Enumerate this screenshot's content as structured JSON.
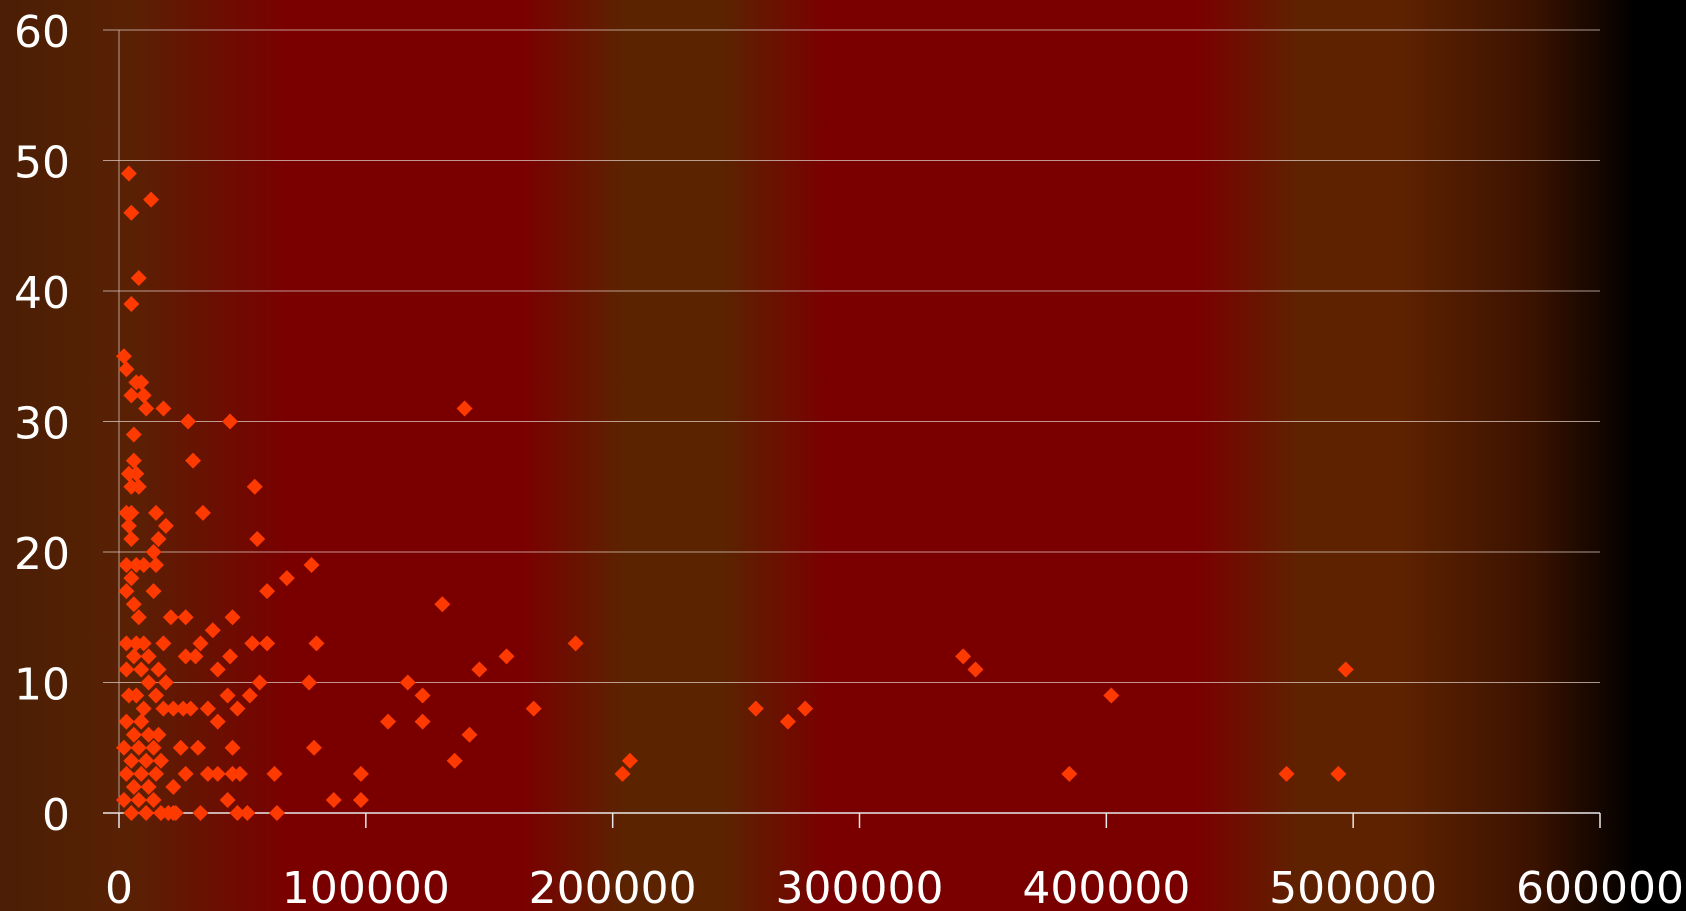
{
  "chart_data": {
    "type": "scatter",
    "title": "",
    "xlabel": "",
    "ylabel": "",
    "xlim": [
      0,
      600000
    ],
    "ylim": [
      0,
      60
    ],
    "grid": "horizontal",
    "x_ticks": [
      "0",
      "100000",
      "200000",
      "300000",
      "400000",
      "500000",
      "600000"
    ],
    "y_ticks": [
      "0",
      "10",
      "20",
      "30",
      "40",
      "50",
      "60"
    ],
    "marker": "diamond",
    "marker_color": "#ff3a00",
    "points": [
      [
        4000,
        49
      ],
      [
        5000,
        46
      ],
      [
        13000,
        47
      ],
      [
        8000,
        41
      ],
      [
        5000,
        39
      ],
      [
        2000,
        35
      ],
      [
        3000,
        34
      ],
      [
        5000,
        32
      ],
      [
        7000,
        33
      ],
      [
        9000,
        33
      ],
      [
        10000,
        32
      ],
      [
        11000,
        31
      ],
      [
        18000,
        31
      ],
      [
        6000,
        29
      ],
      [
        6000,
        27
      ],
      [
        4000,
        26
      ],
      [
        7000,
        26
      ],
      [
        5000,
        25
      ],
      [
        8000,
        25
      ],
      [
        3000,
        23
      ],
      [
        5000,
        23
      ],
      [
        4000,
        22
      ],
      [
        5000,
        21
      ],
      [
        15000,
        23
      ],
      [
        19000,
        22
      ],
      [
        16000,
        21
      ],
      [
        14000,
        20
      ],
      [
        3000,
        19
      ],
      [
        5000,
        18
      ],
      [
        7000,
        19
      ],
      [
        10000,
        19
      ],
      [
        15000,
        19
      ],
      [
        3000,
        17
      ],
      [
        6000,
        16
      ],
      [
        14000,
        17
      ],
      [
        8000,
        15
      ],
      [
        3000,
        13
      ],
      [
        7000,
        13
      ],
      [
        10000,
        13
      ],
      [
        12000,
        12
      ],
      [
        18000,
        13
      ],
      [
        3000,
        11
      ],
      [
        6000,
        12
      ],
      [
        9000,
        11
      ],
      [
        12000,
        10
      ],
      [
        16000,
        11
      ],
      [
        19000,
        10
      ],
      [
        4000,
        9
      ],
      [
        7000,
        9
      ],
      [
        10000,
        8
      ],
      [
        15000,
        9
      ],
      [
        18000,
        8
      ],
      [
        3000,
        7
      ],
      [
        6000,
        6
      ],
      [
        9000,
        7
      ],
      [
        12000,
        6
      ],
      [
        16000,
        6
      ],
      [
        2000,
        5
      ],
      [
        5000,
        4
      ],
      [
        8000,
        5
      ],
      [
        11000,
        4
      ],
      [
        14000,
        5
      ],
      [
        17000,
        4
      ],
      [
        3000,
        3
      ],
      [
        6000,
        2
      ],
      [
        9000,
        3
      ],
      [
        12000,
        2
      ],
      [
        15000,
        3
      ],
      [
        2000,
        1
      ],
      [
        5000,
        0
      ],
      [
        8000,
        1
      ],
      [
        11000,
        0
      ],
      [
        14000,
        1
      ],
      [
        17000,
        0
      ],
      [
        20000,
        0
      ],
      [
        23000,
        0
      ],
      [
        28000,
        30
      ],
      [
        45000,
        30
      ],
      [
        30000,
        27
      ],
      [
        34000,
        23
      ],
      [
        55000,
        25
      ],
      [
        56000,
        21
      ],
      [
        60000,
        17
      ],
      [
        68000,
        18
      ],
      [
        78000,
        19
      ],
      [
        21000,
        15
      ],
      [
        27000,
        15
      ],
      [
        46000,
        15
      ],
      [
        38000,
        14
      ],
      [
        33000,
        13
      ],
      [
        27000,
        12
      ],
      [
        31000,
        12
      ],
      [
        45000,
        12
      ],
      [
        54000,
        13
      ],
      [
        60000,
        13
      ],
      [
        40000,
        11
      ],
      [
        57000,
        10
      ],
      [
        22000,
        8
      ],
      [
        26000,
        8
      ],
      [
        29000,
        8
      ],
      [
        36000,
        8
      ],
      [
        40000,
        7
      ],
      [
        48000,
        8
      ],
      [
        44000,
        9
      ],
      [
        53000,
        9
      ],
      [
        25000,
        5
      ],
      [
        32000,
        5
      ],
      [
        46000,
        5
      ],
      [
        27000,
        3
      ],
      [
        36000,
        3
      ],
      [
        40000,
        3
      ],
      [
        46000,
        3
      ],
      [
        49000,
        3
      ],
      [
        63000,
        3
      ],
      [
        22000,
        2
      ],
      [
        33000,
        0
      ],
      [
        44000,
        1
      ],
      [
        48000,
        0
      ],
      [
        52000,
        0
      ],
      [
        64000,
        0
      ],
      [
        22000,
        0
      ],
      [
        77000,
        10
      ],
      [
        80000,
        13
      ],
      [
        79000,
        5
      ],
      [
        87000,
        1
      ],
      [
        98000,
        3
      ],
      [
        98000,
        1
      ],
      [
        109000,
        7
      ],
      [
        117000,
        10
      ],
      [
        123000,
        9
      ],
      [
        123000,
        7
      ],
      [
        131000,
        16
      ],
      [
        136000,
        4
      ],
      [
        140000,
        31
      ],
      [
        142000,
        6
      ],
      [
        146000,
        11
      ],
      [
        157000,
        12
      ],
      [
        168000,
        8
      ],
      [
        185000,
        13
      ],
      [
        204000,
        3
      ],
      [
        207000,
        4
      ],
      [
        258000,
        8
      ],
      [
        271000,
        7
      ],
      [
        278000,
        8
      ],
      [
        342000,
        12
      ],
      [
        347000,
        11
      ],
      [
        385000,
        3
      ],
      [
        402000,
        9
      ],
      [
        473000,
        3
      ],
      [
        494000,
        3
      ],
      [
        497000,
        11
      ]
    ]
  }
}
